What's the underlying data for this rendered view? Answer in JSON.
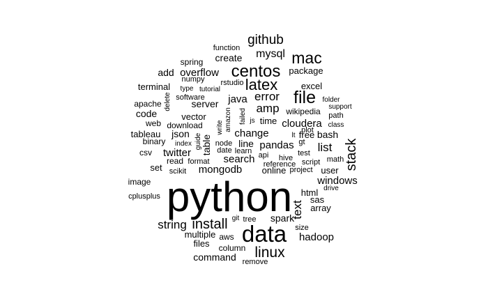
{
  "word_cloud": {
    "color": "#000000",
    "words": [
      {
        "text": "python",
        "weight": 100
      },
      {
        "text": "data",
        "weight": 46
      },
      {
        "text": "file",
        "weight": 34
      },
      {
        "text": "centos",
        "weight": 33
      },
      {
        "text": "mac",
        "weight": 32
      },
      {
        "text": "latex",
        "weight": 31
      },
      {
        "text": "linux",
        "weight": 29
      },
      {
        "text": "stack",
        "weight": 27
      },
      {
        "text": "install",
        "weight": 27
      },
      {
        "text": "github",
        "weight": 26
      },
      {
        "text": "text",
        "weight": 24
      },
      {
        "text": "list",
        "weight": 24
      },
      {
        "text": "string",
        "weight": 23
      },
      {
        "text": "error",
        "weight": 23
      },
      {
        "text": "amp",
        "weight": 23
      },
      {
        "text": "mysql",
        "weight": 22
      },
      {
        "text": "overflow",
        "weight": 21
      },
      {
        "text": "twitter",
        "weight": 21
      },
      {
        "text": "mongodb",
        "weight": 21
      },
      {
        "text": "windows",
        "weight": 20
      },
      {
        "text": "hadoop",
        "weight": 20
      },
      {
        "text": "java",
        "weight": 20
      },
      {
        "text": "search",
        "weight": 19
      },
      {
        "text": "change",
        "weight": 19
      },
      {
        "text": "cloudera",
        "weight": 19
      },
      {
        "text": "pandas",
        "weight": 19
      },
      {
        "text": "server",
        "weight": 19
      },
      {
        "text": "command",
        "weight": 18
      },
      {
        "text": "json",
        "weight": 18
      },
      {
        "text": "create",
        "weight": 18
      },
      {
        "text": "table",
        "weight": 18
      },
      {
        "text": "code",
        "weight": 18
      },
      {
        "text": "spark",
        "weight": 18
      },
      {
        "text": "line",
        "weight": 18
      },
      {
        "text": "bash",
        "weight": 17
      },
      {
        "text": "add",
        "weight": 17
      },
      {
        "text": "package",
        "weight": 16
      },
      {
        "text": "html",
        "weight": 16
      },
      {
        "text": "user",
        "weight": 16
      },
      {
        "text": "array",
        "weight": 16
      },
      {
        "text": "excel",
        "weight": 16
      },
      {
        "text": "set",
        "weight": 16
      },
      {
        "text": "sas",
        "weight": 15
      },
      {
        "text": "online",
        "weight": 15
      },
      {
        "text": "tableau",
        "weight": 15
      },
      {
        "text": "vector",
        "weight": 15
      },
      {
        "text": "time",
        "weight": 15
      },
      {
        "text": "free",
        "weight": 15
      },
      {
        "text": "terminal",
        "weight": 15
      },
      {
        "text": "multiple",
        "weight": 15
      },
      {
        "text": "files",
        "weight": 15
      },
      {
        "text": "spring",
        "weight": 14
      },
      {
        "text": "binary",
        "weight": 14
      },
      {
        "text": "read",
        "weight": 14
      },
      {
        "text": "image",
        "weight": 14
      },
      {
        "text": "wikipedia",
        "weight": 14
      },
      {
        "text": "download",
        "weight": 14
      },
      {
        "text": "web",
        "weight": 14
      },
      {
        "text": "apache",
        "weight": 14
      },
      {
        "text": "csv",
        "weight": 14
      },
      {
        "text": "aws",
        "weight": 14
      },
      {
        "text": "column",
        "weight": 14
      },
      {
        "text": "cplusplus",
        "weight": 13
      },
      {
        "text": "format",
        "weight": 13
      },
      {
        "text": "function",
        "weight": 13
      },
      {
        "text": "software",
        "weight": 13
      },
      {
        "text": "numpy",
        "weight": 13
      },
      {
        "text": "rstudio",
        "weight": 13
      },
      {
        "text": "api",
        "weight": 13
      },
      {
        "text": "path",
        "weight": 13
      },
      {
        "text": "project",
        "weight": 13
      },
      {
        "text": "script",
        "weight": 13
      },
      {
        "text": "reference",
        "weight": 13
      },
      {
        "text": "hive",
        "weight": 13
      },
      {
        "text": "plot",
        "weight": 13
      },
      {
        "text": "remove",
        "weight": 13
      },
      {
        "text": "git",
        "weight": 12
      },
      {
        "text": "tree",
        "weight": 13
      },
      {
        "text": "size",
        "weight": 13
      },
      {
        "text": "math",
        "weight": 13
      },
      {
        "text": "test",
        "weight": 13
      },
      {
        "text": "gt",
        "weight": 13
      },
      {
        "text": "lt",
        "weight": 12
      },
      {
        "text": "scikit",
        "weight": 13
      },
      {
        "text": "learn",
        "weight": 13
      },
      {
        "text": "date",
        "weight": 13
      },
      {
        "text": "node",
        "weight": 13
      },
      {
        "text": "tutorial",
        "weight": 12
      },
      {
        "text": "type",
        "weight": 12
      },
      {
        "text": "support",
        "weight": 12
      },
      {
        "text": "folder",
        "weight": 12
      },
      {
        "text": "class",
        "weight": 12
      },
      {
        "text": "index",
        "weight": 12
      },
      {
        "text": "drive",
        "weight": 12
      },
      {
        "text": "js",
        "weight": 12
      },
      {
        "text": "guide",
        "weight": 12
      },
      {
        "text": "write",
        "weight": 12
      },
      {
        "text": "amazon",
        "weight": 12
      },
      {
        "text": "failed",
        "weight": 12
      },
      {
        "text": "delete",
        "weight": 12
      }
    ]
  }
}
